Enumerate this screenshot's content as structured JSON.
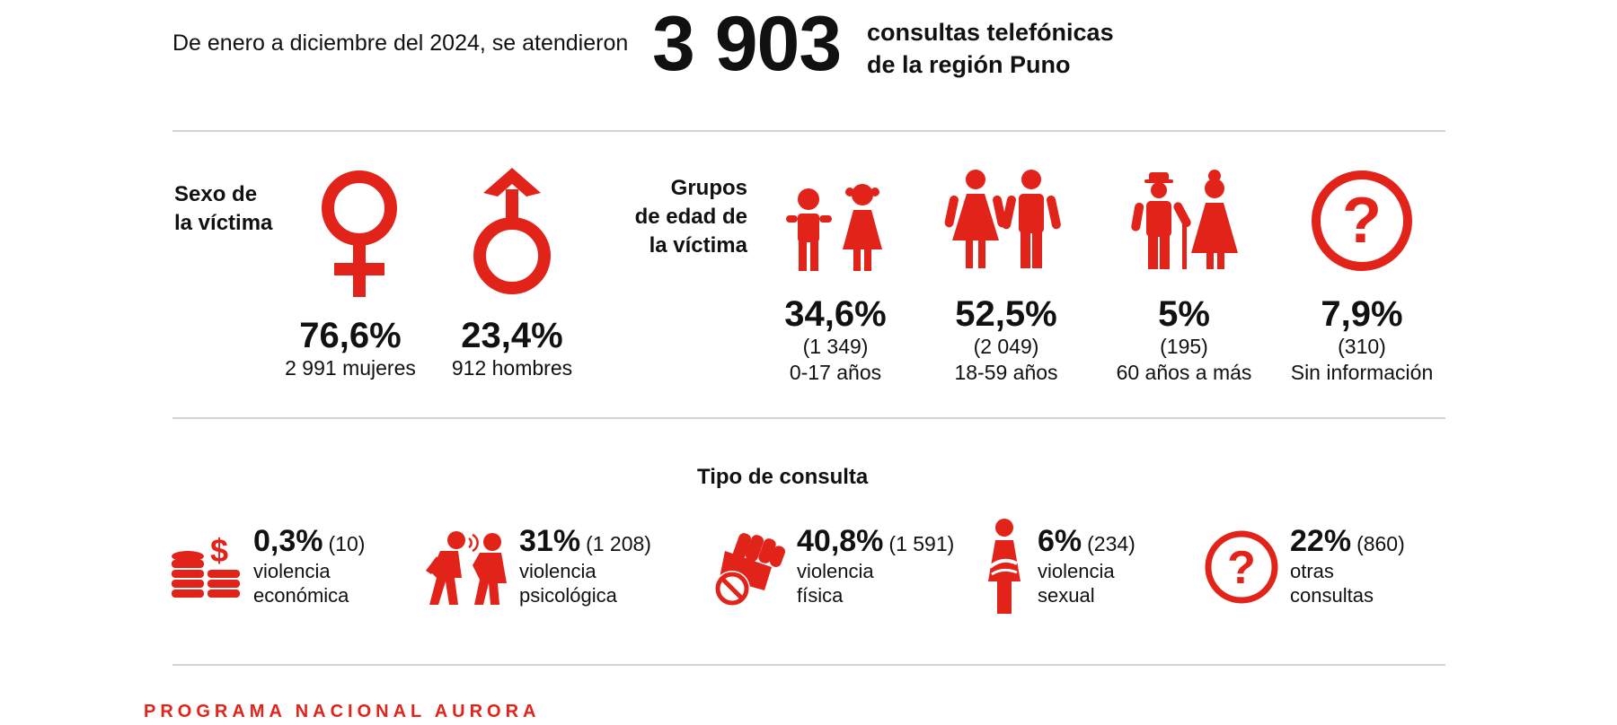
{
  "header": {
    "intro": "De enero a diciembre del 2024, se atendieron",
    "total": "3 903",
    "line1": "consultas telefónicas",
    "line2": "de la región Puno"
  },
  "sex": {
    "label_line1": "Sexo de",
    "label_line2": "la víctima",
    "female": {
      "pct": "76,6%",
      "detail": "2 991 mujeres"
    },
    "male": {
      "pct": "23,4%",
      "detail": "912 hombres"
    }
  },
  "age": {
    "label_line1": "Grupos",
    "label_line2": "de edad de",
    "label_line3": "la víctima",
    "groups": [
      {
        "pct": "34,6%",
        "count": "(1 349)",
        "range": "0-17 años"
      },
      {
        "pct": "52,5%",
        "count": "(2 049)",
        "range": "18-59 años"
      },
      {
        "pct": "5%",
        "count": "(195)",
        "range": "60 años a más"
      },
      {
        "pct": "7,9%",
        "count": "(310)",
        "range": "Sin información"
      }
    ]
  },
  "types": {
    "title": "Tipo de consulta",
    "items": [
      {
        "pct": "0,3%",
        "count": "(10)",
        "line1": "violencia",
        "line2": "económica"
      },
      {
        "pct": "31%",
        "count": "(1 208)",
        "line1": "violencia",
        "line2": "psicológica"
      },
      {
        "pct": "40,8%",
        "count": "(1 591)",
        "line1": "violencia",
        "line2": "física"
      },
      {
        "pct": "6%",
        "count": "(234)",
        "line1": "violencia",
        "line2": "sexual"
      },
      {
        "pct": "22%",
        "count": "(860)",
        "line1": "otras",
        "line2": "consultas"
      }
    ]
  },
  "footer": "PROGRAMA NACIONAL AURORA",
  "colors": {
    "accent": "#e2231a",
    "divider": "#d4d4d4",
    "text": "#111111"
  }
}
